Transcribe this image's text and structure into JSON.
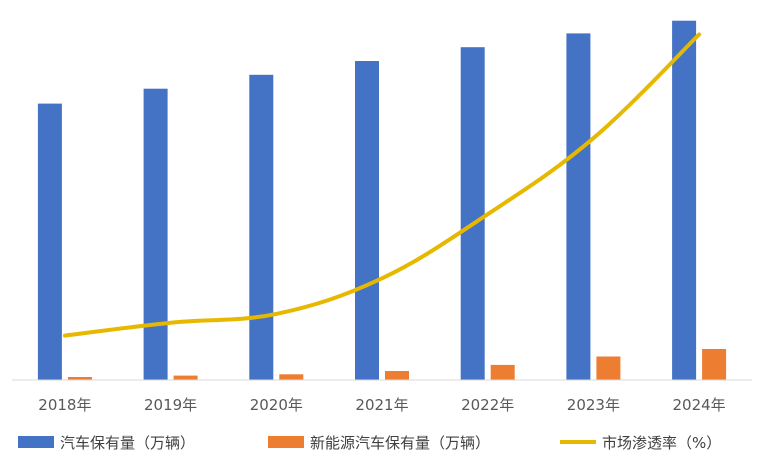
{
  "chart_data": {
    "type": "bar",
    "categories": [
      "2018年",
      "2019年",
      "2020年",
      "2021年",
      "2022年",
      "2023年",
      "2024年"
    ],
    "series": [
      {
        "name": "汽车保有量（万辆）",
        "type": "bar",
        "axis": "left",
        "color": "#4472C4",
        "values": [
          24000,
          25300,
          26500,
          27700,
          28900,
          30100,
          31200
        ]
      },
      {
        "name": "新能源汽车保有量（万辆）",
        "type": "bar",
        "axis": "left",
        "color": "#ED7D31",
        "values": [
          261,
          381,
          492,
          784,
          1310,
          2041,
          2690
        ]
      },
      {
        "name": "市场渗透率（%）",
        "type": "line",
        "axis": "right",
        "color": "#E6B800",
        "values": [
          4.5,
          5.8,
          6.7,
          10.3,
          16.8,
          24.5,
          35.0
        ]
      }
    ],
    "ylim_left": [
      0,
      33000
    ],
    "ylim_right": [
      0,
      38.5
    ],
    "grid": false,
    "legend_position": "bottom"
  }
}
